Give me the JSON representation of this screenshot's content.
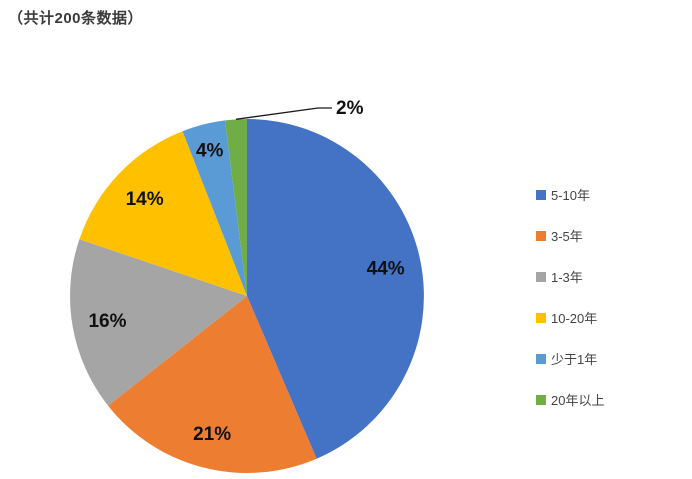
{
  "title": "（共计200条数据）",
  "chart_data": {
    "type": "pie",
    "title": "（共计200条数据）",
    "categories": [
      "5-10年",
      "3-5年",
      "1-3年",
      "10-20年",
      "少于1年",
      "20年以上"
    ],
    "values": [
      44,
      21,
      16,
      14,
      4,
      2
    ],
    "data_labels": [
      "44%",
      "21%",
      "16%",
      "14%",
      "4%",
      "2%"
    ],
    "colors": [
      "#4472C4",
      "#ED7D31",
      "#A5A5A5",
      "#FFC000",
      "#5B9BD5",
      "#70AD47"
    ],
    "unit": "%",
    "start_angle_deg": 0,
    "direction": "clockwise",
    "legend_position": "right",
    "grid": false
  }
}
